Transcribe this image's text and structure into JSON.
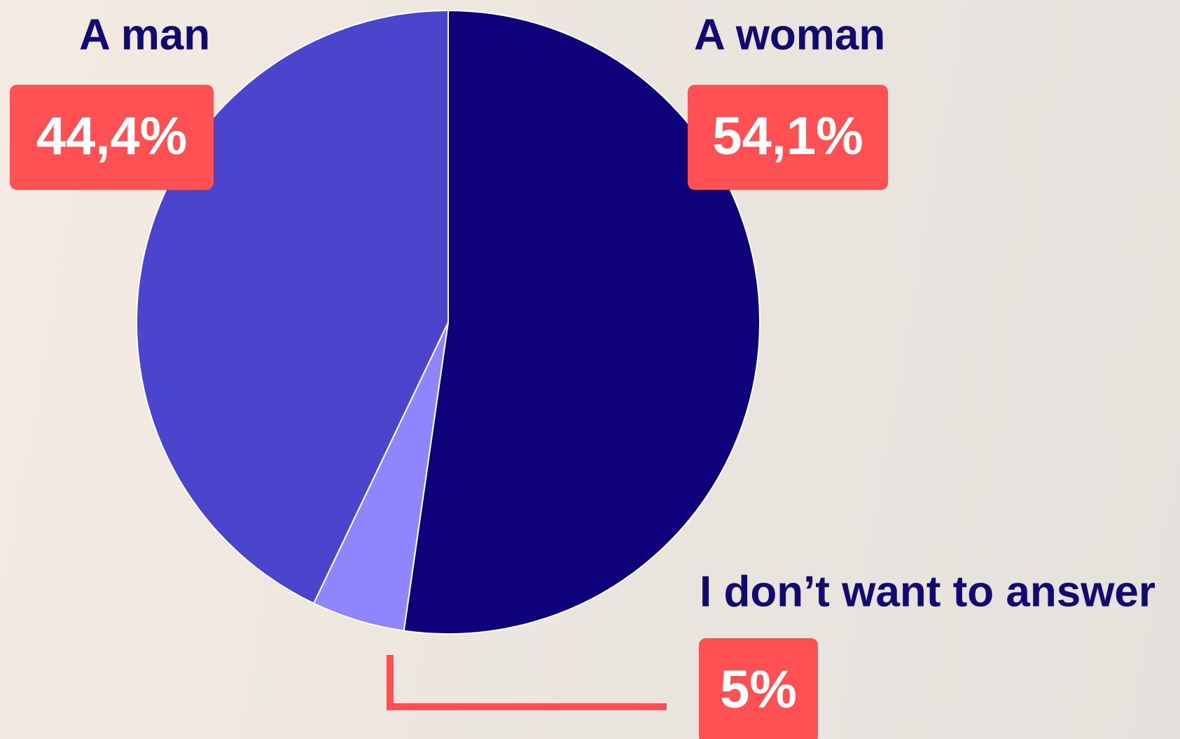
{
  "chart_data": {
    "type": "pie",
    "categories": [
      "A woman",
      "I don’t want to answer",
      "A man"
    ],
    "values": [
      54.1,
      5,
      44.4
    ],
    "value_labels": [
      "54,1%",
      "5%",
      "44,4%"
    ],
    "colors": [
      "#0d007a",
      "#8f86ff",
      "#4b44cc"
    ]
  }
}
